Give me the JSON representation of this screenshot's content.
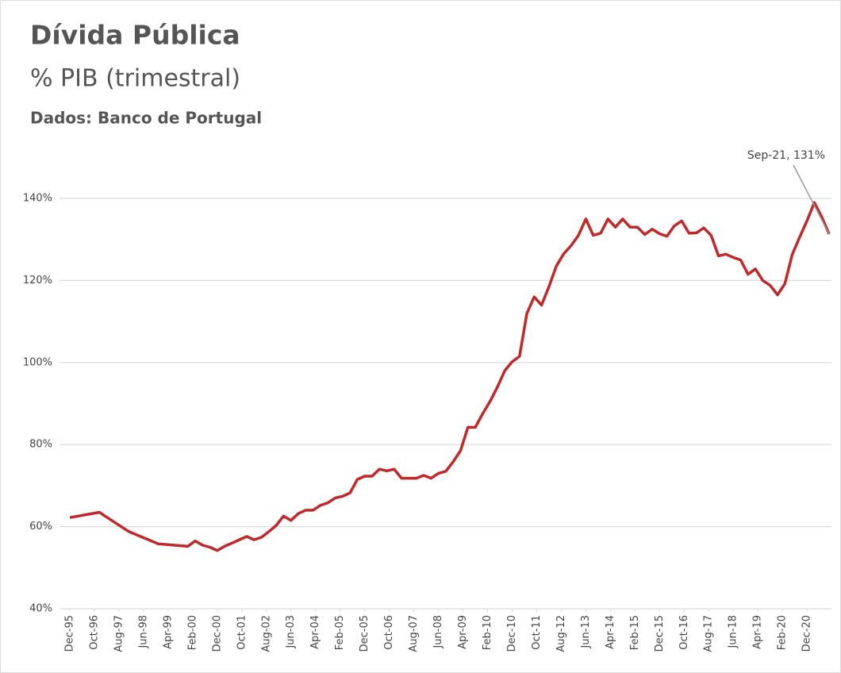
{
  "chart_data": {
    "type": "line",
    "title": "Dívida Pública",
    "subtitle": "% PIB (trimestral)",
    "source": "Dados: Banco de Portugal",
    "annotation": "Sep-21, 131%",
    "x": [
      "1995-12",
      "1996-12",
      "1997-12",
      "1998-12",
      "1999-12",
      "2000-03",
      "2000-06",
      "2000-09",
      "2000-12",
      "2001-03",
      "2001-06",
      "2001-09",
      "2001-12",
      "2002-03",
      "2002-06",
      "2002-09",
      "2002-12",
      "2003-03",
      "2003-06",
      "2003-09",
      "2003-12",
      "2004-03",
      "2004-06",
      "2004-09",
      "2004-12",
      "2005-03",
      "2005-06",
      "2005-09",
      "2005-12",
      "2006-03",
      "2006-06",
      "2006-09",
      "2006-12",
      "2007-03",
      "2007-06",
      "2007-09",
      "2007-12",
      "2008-03",
      "2008-06",
      "2008-09",
      "2008-12",
      "2009-03",
      "2009-06",
      "2009-09",
      "2009-12",
      "2010-03",
      "2010-06",
      "2010-09",
      "2010-12",
      "2011-03",
      "2011-06",
      "2011-09",
      "2011-12",
      "2012-03",
      "2012-06",
      "2012-09",
      "2012-12",
      "2013-03",
      "2013-06",
      "2013-09",
      "2013-12",
      "2014-03",
      "2014-06",
      "2014-09",
      "2014-12",
      "2015-03",
      "2015-06",
      "2015-09",
      "2015-12",
      "2016-03",
      "2016-06",
      "2016-09",
      "2016-12",
      "2017-03",
      "2017-06",
      "2017-09",
      "2017-12",
      "2018-03",
      "2018-06",
      "2018-09",
      "2018-12",
      "2019-03",
      "2019-06",
      "2019-09",
      "2019-12",
      "2020-03",
      "2020-06",
      "2020-09",
      "2020-12",
      "2021-03",
      "2021-06",
      "2021-09"
    ],
    "series": [
      {
        "name": "Dívida Pública",
        "color": "#c0282a",
        "values": [
          62.2,
          63.5,
          58.8,
          55.8,
          55.2,
          56.5,
          55.5,
          55,
          54.2,
          55.2,
          56,
          56.8,
          57.6,
          56.8,
          57.4,
          58.8,
          60.3,
          62.6,
          61.5,
          63.2,
          64,
          64,
          65.2,
          65.8,
          67,
          67.4,
          68.2,
          71.5,
          72.3,
          72.3,
          74,
          73.6,
          74,
          71.8,
          71.8,
          71.8,
          72.5,
          71.8,
          73,
          73.5,
          75.8,
          78.5,
          84.2,
          84.2,
          87.5,
          90.5,
          94,
          98,
          100.2,
          101.5,
          112,
          116,
          114,
          118.5,
          123.5,
          126.5,
          128.5,
          131,
          135,
          131,
          131.5,
          135,
          133,
          135,
          133,
          133,
          131.2,
          132.5,
          131.4,
          130.8,
          133.3,
          134.5,
          131.5,
          131.6,
          132.8,
          131,
          126,
          126.4,
          125.6,
          125,
          121.5,
          122.8,
          120,
          118.8,
          116.5,
          119.2,
          126.3,
          130.5,
          134.5,
          139,
          135.5,
          131.3
        ]
      }
    ],
    "xlim": [
      "1995-12",
      "2021-09"
    ],
    "xticks": [
      {
        "value": "1995-12",
        "label": "Dec-95"
      },
      {
        "value": "1996-10",
        "label": "Oct-96"
      },
      {
        "value": "1997-08",
        "label": "Aug-97"
      },
      {
        "value": "1998-06",
        "label": "Jun-98"
      },
      {
        "value": "1999-04",
        "label": "Apr-99"
      },
      {
        "value": "2000-02",
        "label": "Feb-00"
      },
      {
        "value": "2000-12",
        "label": "Dec-00"
      },
      {
        "value": "2001-10",
        "label": "Oct-01"
      },
      {
        "value": "2002-08",
        "label": "Aug-02"
      },
      {
        "value": "2003-06",
        "label": "Jun-03"
      },
      {
        "value": "2004-04",
        "label": "Apr-04"
      },
      {
        "value": "2005-02",
        "label": "Feb-05"
      },
      {
        "value": "2005-12",
        "label": "Dec-05"
      },
      {
        "value": "2006-10",
        "label": "Oct-06"
      },
      {
        "value": "2007-08",
        "label": "Aug-07"
      },
      {
        "value": "2008-06",
        "label": "Jun-08"
      },
      {
        "value": "2009-04",
        "label": "Apr-09"
      },
      {
        "value": "2010-02",
        "label": "Feb-10"
      },
      {
        "value": "2010-12",
        "label": "Dec-10"
      },
      {
        "value": "2011-10",
        "label": "Oct-11"
      },
      {
        "value": "2012-08",
        "label": "Aug-12"
      },
      {
        "value": "2013-06",
        "label": "Jun-13"
      },
      {
        "value": "2014-04",
        "label": "Apr-14"
      },
      {
        "value": "2015-02",
        "label": "Feb-15"
      },
      {
        "value": "2015-12",
        "label": "Dec-15"
      },
      {
        "value": "2016-10",
        "label": "Oct-16"
      },
      {
        "value": "2017-08",
        "label": "Aug-17"
      },
      {
        "value": "2018-06",
        "label": "Jun-18"
      },
      {
        "value": "2019-04",
        "label": "Apr-19"
      },
      {
        "value": "2020-02",
        "label": "Feb-20"
      },
      {
        "value": "2020-12",
        "label": "Dec-20"
      }
    ],
    "ylim": [
      40,
      140
    ],
    "yticks": [
      {
        "value": 40,
        "label": "40%"
      },
      {
        "value": 60,
        "label": "60%"
      },
      {
        "value": 80,
        "label": "80%"
      },
      {
        "value": 100,
        "label": "100%"
      },
      {
        "value": 120,
        "label": "120%"
      },
      {
        "value": 140,
        "label": "140%"
      }
    ],
    "grid": true
  }
}
